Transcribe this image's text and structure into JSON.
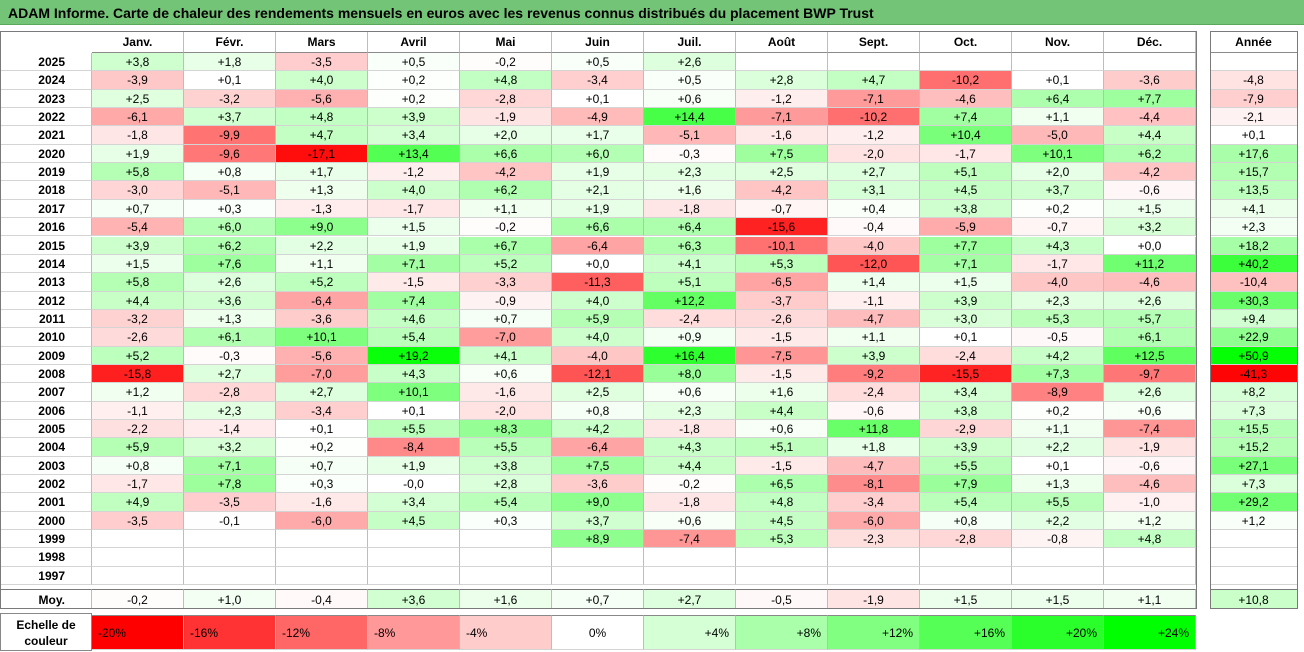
{
  "title": "ADAM Informe. Carte de chaleur des rendements mensuels en euros avec les revenus connus distribués du placement BWP Trust",
  "chart_data": {
    "type": "heatmap",
    "months": [
      "Janv.",
      "Févr.",
      "Mars",
      "Avril",
      "Mai",
      "Juin",
      "Juil.",
      "Août",
      "Sept.",
      "Oct.",
      "Nov.",
      "Déc."
    ],
    "year_header": "Année",
    "rows": [
      {
        "year": "2025",
        "m": [
          "+3,8",
          "+1,8",
          "-3,5",
          "+0,5",
          "-0,2",
          "+0,5",
          "+2,6",
          "",
          "",
          "",
          "",
          ""
        ],
        "total": ""
      },
      {
        "year": "2024",
        "m": [
          "-3,9",
          "+0,1",
          "+4,0",
          "+0,2",
          "+4,8",
          "-3,4",
          "+0,5",
          "+2,8",
          "+4,7",
          "-10,2",
          "+0,1",
          "-3,6"
        ],
        "total": "-4,8"
      },
      {
        "year": "2023",
        "m": [
          "+2,5",
          "-3,2",
          "-5,6",
          "+0,2",
          "-2,8",
          "+0,1",
          "+0,6",
          "-1,2",
          "-7,1",
          "-4,6",
          "+6,4",
          "+7,7"
        ],
        "total": "-7,9"
      },
      {
        "year": "2022",
        "m": [
          "-6,1",
          "+3,7",
          "+4,8",
          "+3,9",
          "-1,9",
          "-4,9",
          "+14,4",
          "-7,1",
          "-10,2",
          "+7,4",
          "+1,1",
          "-4,4"
        ],
        "total": "-2,1"
      },
      {
        "year": "2021",
        "m": [
          "-1,8",
          "-9,9",
          "+4,7",
          "+3,4",
          "+2,0",
          "+1,7",
          "-5,1",
          "-1,6",
          "-1,2",
          "+10,4",
          "-5,0",
          "+4,4"
        ],
        "total": "+0,1"
      },
      {
        "year": "2020",
        "m": [
          "+1,9",
          "-9,6",
          "-17,1",
          "+13,4",
          "+6,6",
          "+6,0",
          "-0,3",
          "+7,5",
          "-2,0",
          "-1,7",
          "+10,1",
          "+6,2"
        ],
        "total": "+17,6"
      },
      {
        "year": "2019",
        "m": [
          "+5,8",
          "+0,8",
          "+1,7",
          "-1,2",
          "-4,2",
          "+1,9",
          "+2,3",
          "+2,5",
          "+2,7",
          "+5,1",
          "+2,0",
          "-4,2"
        ],
        "total": "+15,7"
      },
      {
        "year": "2018",
        "m": [
          "-3,0",
          "-5,1",
          "+1,3",
          "+4,0",
          "+6,2",
          "+2,1",
          "+1,6",
          "-4,2",
          "+3,1",
          "+4,5",
          "+3,7",
          "-0,6"
        ],
        "total": "+13,5"
      },
      {
        "year": "2017",
        "m": [
          "+0,7",
          "+0,3",
          "-1,3",
          "-1,7",
          "+1,1",
          "+1,9",
          "-1,8",
          "-0,7",
          "+0,4",
          "+3,8",
          "+0,2",
          "+1,5"
        ],
        "total": "+4,1"
      },
      {
        "year": "2016",
        "m": [
          "-5,4",
          "+6,0",
          "+9,0",
          "+1,5",
          "-0,2",
          "+6,6",
          "+6,4",
          "-15,6",
          "-0,4",
          "-5,9",
          "-0,7",
          "+3,2"
        ],
        "total": "+2,3"
      },
      {
        "year": "2015",
        "m": [
          "+3,9",
          "+6,2",
          "+2,2",
          "+1,9",
          "+6,7",
          "-6,4",
          "+6,3",
          "-10,1",
          "-4,0",
          "+7,7",
          "+4,3",
          "+0,0"
        ],
        "total": "+18,2"
      },
      {
        "year": "2014",
        "m": [
          "+1,5",
          "+7,6",
          "+1,1",
          "+7,1",
          "+5,2",
          "+0,0",
          "+4,1",
          "+5,3",
          "-12,0",
          "+7,1",
          "-1,7",
          "+11,2"
        ],
        "total": "+40,2"
      },
      {
        "year": "2013",
        "m": [
          "+5,8",
          "+2,6",
          "+5,2",
          "-1,5",
          "-3,3",
          "-11,3",
          "+5,1",
          "-6,5",
          "+1,4",
          "+1,5",
          "-4,0",
          "-4,6"
        ],
        "total": "-10,4"
      },
      {
        "year": "2012",
        "m": [
          "+4,4",
          "+3,6",
          "-6,4",
          "+7,4",
          "-0,9",
          "+4,0",
          "+12,2",
          "-3,7",
          "-1,1",
          "+3,9",
          "+2,3",
          "+2,6"
        ],
        "total": "+30,3"
      },
      {
        "year": "2011",
        "m": [
          "-3,2",
          "+1,3",
          "-3,6",
          "+4,6",
          "+0,7",
          "+5,9",
          "-2,4",
          "-2,6",
          "-4,7",
          "+3,0",
          "+5,3",
          "+5,7"
        ],
        "total": "+9,4"
      },
      {
        "year": "2010",
        "m": [
          "-2,6",
          "+6,1",
          "+10,1",
          "+5,4",
          "-7,0",
          "+4,0",
          "+0,9",
          "-1,5",
          "+1,1",
          "+0,1",
          "-0,5",
          "+6,1"
        ],
        "total": "+22,9"
      },
      {
        "year": "2009",
        "m": [
          "+5,2",
          "-0,3",
          "-5,6",
          "+19,2",
          "+4,1",
          "-4,0",
          "+16,4",
          "-7,5",
          "+3,9",
          "-2,4",
          "+4,2",
          "+12,5"
        ],
        "total": "+50,9"
      },
      {
        "year": "2008",
        "m": [
          "-15,8",
          "+2,7",
          "-7,0",
          "+4,3",
          "+0,6",
          "-12,1",
          "+8,0",
          "-1,5",
          "-9,2",
          "-15,5",
          "+7,3",
          "-9,7"
        ],
        "total": "-41,3"
      },
      {
        "year": "2007",
        "m": [
          "+1,2",
          "-2,8",
          "+2,7",
          "+10,1",
          "-1,6",
          "+2,5",
          "+0,6",
          "+1,6",
          "-2,4",
          "+3,4",
          "-8,9",
          "+2,6"
        ],
        "total": "+8,2"
      },
      {
        "year": "2006",
        "m": [
          "-1,1",
          "+2,3",
          "-3,4",
          "+0,1",
          "-2,0",
          "+0,8",
          "+2,3",
          "+4,4",
          "-0,6",
          "+3,8",
          "+0,2",
          "+0,6"
        ],
        "total": "+7,3"
      },
      {
        "year": "2005",
        "m": [
          "-2,2",
          "-1,4",
          "+0,1",
          "+5,5",
          "+8,3",
          "+4,2",
          "-1,8",
          "+0,6",
          "+11,8",
          "-2,9",
          "+1,1",
          "-7,4"
        ],
        "total": "+15,5"
      },
      {
        "year": "2004",
        "m": [
          "+5,9",
          "+3,2",
          "+0,2",
          "-8,4",
          "+5,5",
          "-6,4",
          "+4,3",
          "+5,1",
          "+1,8",
          "+3,9",
          "+2,2",
          "-1,9"
        ],
        "total": "+15,2"
      },
      {
        "year": "2003",
        "m": [
          "+0,8",
          "+7,1",
          "+0,7",
          "+1,9",
          "+3,8",
          "+7,5",
          "+4,4",
          "-1,5",
          "-4,7",
          "+5,5",
          "+0,1",
          "-0,6"
        ],
        "total": "+27,1"
      },
      {
        "year": "2002",
        "m": [
          "-1,7",
          "+7,8",
          "+0,3",
          "-0,0",
          "+2,8",
          "-3,6",
          "-0,2",
          "+6,5",
          "-8,1",
          "+7,9",
          "+1,3",
          "-4,6"
        ],
        "total": "+7,3"
      },
      {
        "year": "2001",
        "m": [
          "+4,9",
          "-3,5",
          "-1,6",
          "+3,4",
          "+5,4",
          "+9,0",
          "-1,8",
          "+4,8",
          "-3,4",
          "+5,4",
          "+5,5",
          "-1,0"
        ],
        "total": "+29,2"
      },
      {
        "year": "2000",
        "m": [
          "-3,5",
          "-0,1",
          "-6,0",
          "+4,5",
          "+0,3",
          "+3,7",
          "+0,6",
          "+4,5",
          "-6,0",
          "+0,8",
          "+2,2",
          "+1,2"
        ],
        "total": "+1,2"
      },
      {
        "year": "1999",
        "m": [
          "",
          "",
          "",
          "",
          "",
          "+8,9",
          "-7,4",
          "+5,3",
          "-2,3",
          "-2,8",
          "-0,8",
          "+4,8"
        ],
        "total": ""
      },
      {
        "year": "1998",
        "m": [
          "",
          "",
          "",
          "",
          "",
          "",
          "",
          "",
          "",
          "",
          "",
          ""
        ],
        "total": ""
      },
      {
        "year": "1997",
        "m": [
          "",
          "",
          "",
          "",
          "",
          "",
          "",
          "",
          "",
          "",
          "",
          ""
        ],
        "total": ""
      }
    ],
    "average": {
      "label": "Moy.",
      "m": [
        "-0,2",
        "+1,0",
        "-0,4",
        "+3,6",
        "+1,6",
        "+0,7",
        "+2,7",
        "-0,5",
        "-1,9",
        "+1,5",
        "+1,5",
        "+1,1"
      ],
      "total": "+10,8"
    },
    "scale": {
      "label": "Echelle de couleur",
      "steps": [
        "-20%",
        "-16%",
        "-12%",
        "-8%",
        "-4%",
        "0%",
        "+4%",
        "+8%",
        "+12%",
        "+16%",
        "+20%",
        "+24%"
      ],
      "values": [
        -20,
        -16,
        -12,
        -8,
        -4,
        0,
        4,
        8,
        12,
        16,
        20,
        24
      ]
    },
    "colors": {
      "negative": "#ff0000",
      "neutral": "#ffffff",
      "positive": "#00ff00"
    }
  }
}
